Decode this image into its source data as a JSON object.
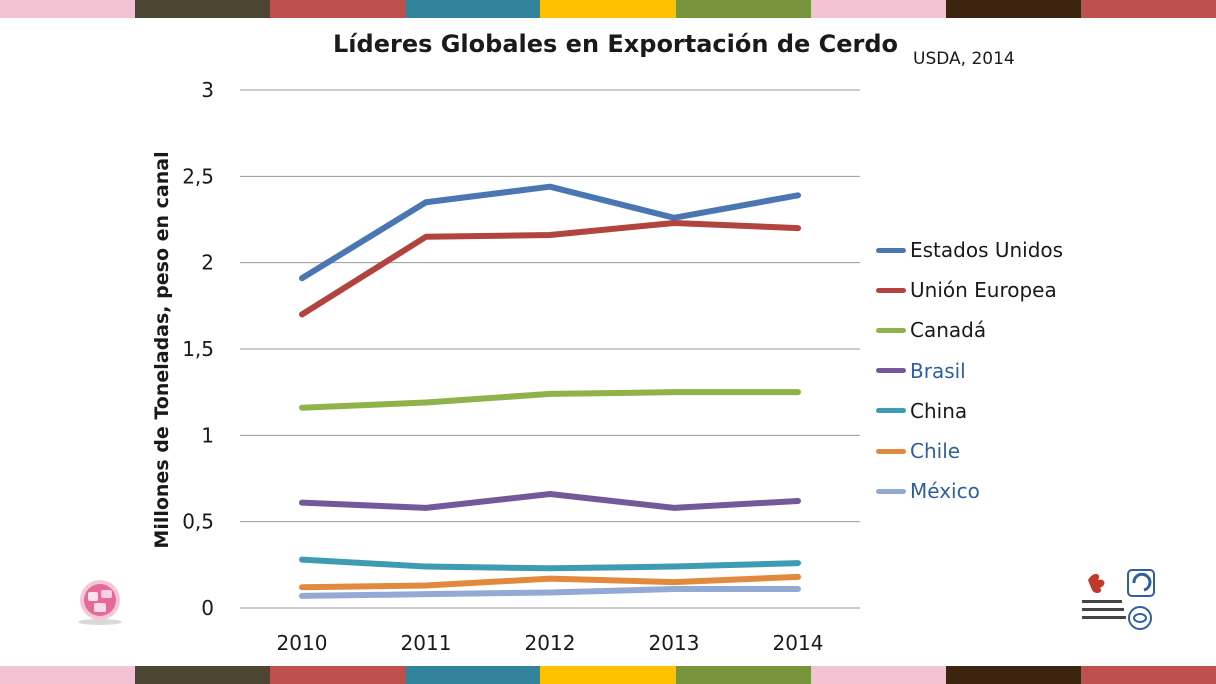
{
  "stripe_colors": [
    "#f2c4d3",
    "#4b4532",
    "#c0504d",
    "#31849b",
    "#ffc000",
    "#77933c",
    "#f2c4d3",
    "#3d2410",
    "#c0504d"
  ],
  "chart_data": {
    "type": "line",
    "title": "Líderes Globales en Exportación de Cerdo",
    "source": "USDA, 2014",
    "xlabel": "",
    "ylabel": "Millones de Toneladas, peso en canal",
    "categories": [
      "2010",
      "2011",
      "2012",
      "2013",
      "2014"
    ],
    "ylim": [
      0,
      3
    ],
    "yticks": [
      "0",
      "0,5",
      "1",
      "1,5",
      "2",
      "2,5",
      "3"
    ],
    "grid": true,
    "legend_position": "right",
    "series": [
      {
        "name": "Estados Unidos",
        "color": "#4a76b1",
        "label_color": "#1a1a1a",
        "values": [
          1.91,
          2.35,
          2.44,
          2.26,
          2.39
        ]
      },
      {
        "name": "Unión Europea",
        "color": "#b1443f",
        "label_color": "#1a1a1a",
        "values": [
          1.7,
          2.15,
          2.16,
          2.23,
          2.2
        ]
      },
      {
        "name": "Canadá",
        "color": "#8fb24a",
        "label_color": "#1a1a1a",
        "values": [
          1.16,
          1.19,
          1.24,
          1.25,
          1.25
        ]
      },
      {
        "name": "Brasil",
        "color": "#73599a",
        "label_color": "#2f5f9e",
        "values": [
          0.61,
          0.58,
          0.66,
          0.58,
          0.62
        ]
      },
      {
        "name": "China",
        "color": "#3d9cb3",
        "label_color": "#1a1a1a",
        "values": [
          0.28,
          0.24,
          0.23,
          0.24,
          0.26
        ]
      },
      {
        "name": "Chile",
        "color": "#e18a3e",
        "label_color": "#2f5f9e",
        "values": [
          0.12,
          0.13,
          0.17,
          0.15,
          0.18
        ]
      },
      {
        "name": "México",
        "color": "#93aad4",
        "label_color": "#2f5f9e",
        "values": [
          0.07,
          0.08,
          0.09,
          0.11,
          0.11
        ]
      }
    ]
  }
}
